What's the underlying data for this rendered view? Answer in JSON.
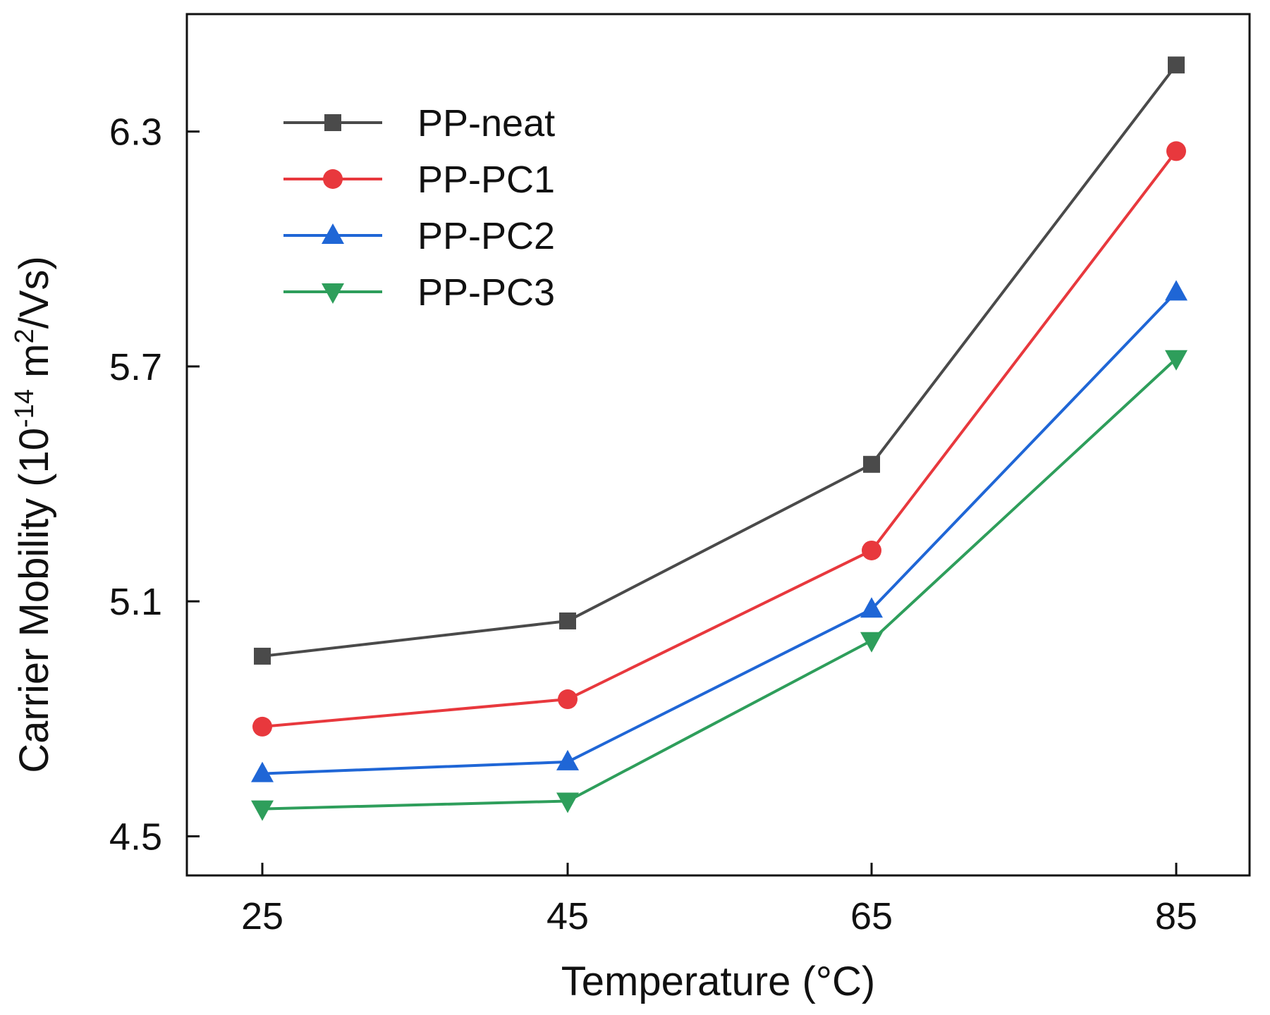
{
  "chart_data": {
    "type": "line",
    "title": "",
    "xlabel": "Temperature (°C)",
    "ylabel": {
      "prefix": "Carrier Mobility (10",
      "exp1": "-14",
      "middle": " m",
      "exp2": "2",
      "suffix": "/Vs)"
    },
    "x": [
      25,
      45,
      65,
      85
    ],
    "x_ticks": [
      "25",
      "45",
      "65",
      "85"
    ],
    "y_ticks": [
      "4.5",
      "5.1",
      "5.7",
      "6.3"
    ],
    "ylim": [
      4.4,
      6.6
    ],
    "grid": false,
    "legend_position": "top-left",
    "series": [
      {
        "name": "PP-neat",
        "color": "#4a4a4a",
        "marker": "square",
        "values": [
          4.96,
          5.05,
          5.45,
          6.47
        ]
      },
      {
        "name": "PP-PC1",
        "color": "#e8383d",
        "marker": "circle",
        "values": [
          4.78,
          4.85,
          5.23,
          6.25
        ]
      },
      {
        "name": "PP-PC2",
        "color": "#1f66d6",
        "marker": "triangle-up",
        "values": [
          4.66,
          4.69,
          5.08,
          5.89
        ]
      },
      {
        "name": "PP-PC3",
        "color": "#2e9e5b",
        "marker": "triangle-down",
        "values": [
          4.57,
          4.59,
          5.0,
          5.72
        ]
      }
    ]
  }
}
